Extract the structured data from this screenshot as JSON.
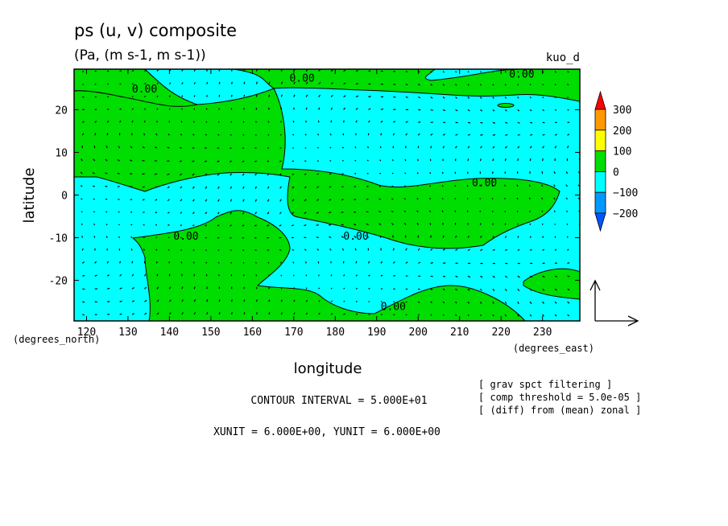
{
  "chart_data": {
    "type": "heatmap",
    "title": "ps (u, v) composite",
    "subtitle": "(Pa, (m s-1, m s-1))",
    "run_label": "kuo_d",
    "xlabel": "longitude",
    "ylabel": "latitude",
    "x_unit_label": "(degrees_east)",
    "y_unit_label": "(degrees_north)",
    "xlim": [
      117,
      239
    ],
    "ylim": [
      -29.5,
      29.5
    ],
    "x_ticks": [
      120,
      130,
      140,
      150,
      160,
      170,
      180,
      190,
      200,
      210,
      220,
      230
    ],
    "y_ticks": [
      20,
      10,
      0,
      -10,
      -20
    ],
    "colorbar": {
      "levels": [
        "300",
        "200",
        "100",
        "0",
        "−100",
        "−200"
      ],
      "colors": [
        "#ff0000",
        "#ff9900",
        "#ffff00",
        "#00dd00",
        "#00ffff",
        "#0099ff",
        "#0055ff"
      ]
    },
    "fill_colors": {
      "positive": "#00dd00",
      "negative": "#00ffff"
    },
    "contour_label": "0.00",
    "contour_labels": [
      {
        "x": 134,
        "y": 25
      },
      {
        "x": 172,
        "y": 27.5
      },
      {
        "x": 225,
        "y": 28.5
      },
      {
        "x": 216,
        "y": 3
      },
      {
        "x": 144,
        "y": -9.5
      },
      {
        "x": 185,
        "y": -9.5
      },
      {
        "x": 194,
        "y": -26
      }
    ],
    "vector_field": {
      "lon_start": 119,
      "lon_step": 3,
      "lat_start": -28,
      "lat_step": 3,
      "reference_vector": {
        "u": 6.0,
        "v": 6.0
      }
    },
    "footer": {
      "contour_interval": "CONTOUR INTERVAL = 5.000E+01",
      "units": "XUNIT = 6.000E+00, YUNIT = 6.000E+00",
      "notes": [
        "[ grav spct filtering ]",
        "[ comp threshold = 5.0e-05 ]",
        "[ (diff) from (mean) zonal ]"
      ]
    }
  }
}
